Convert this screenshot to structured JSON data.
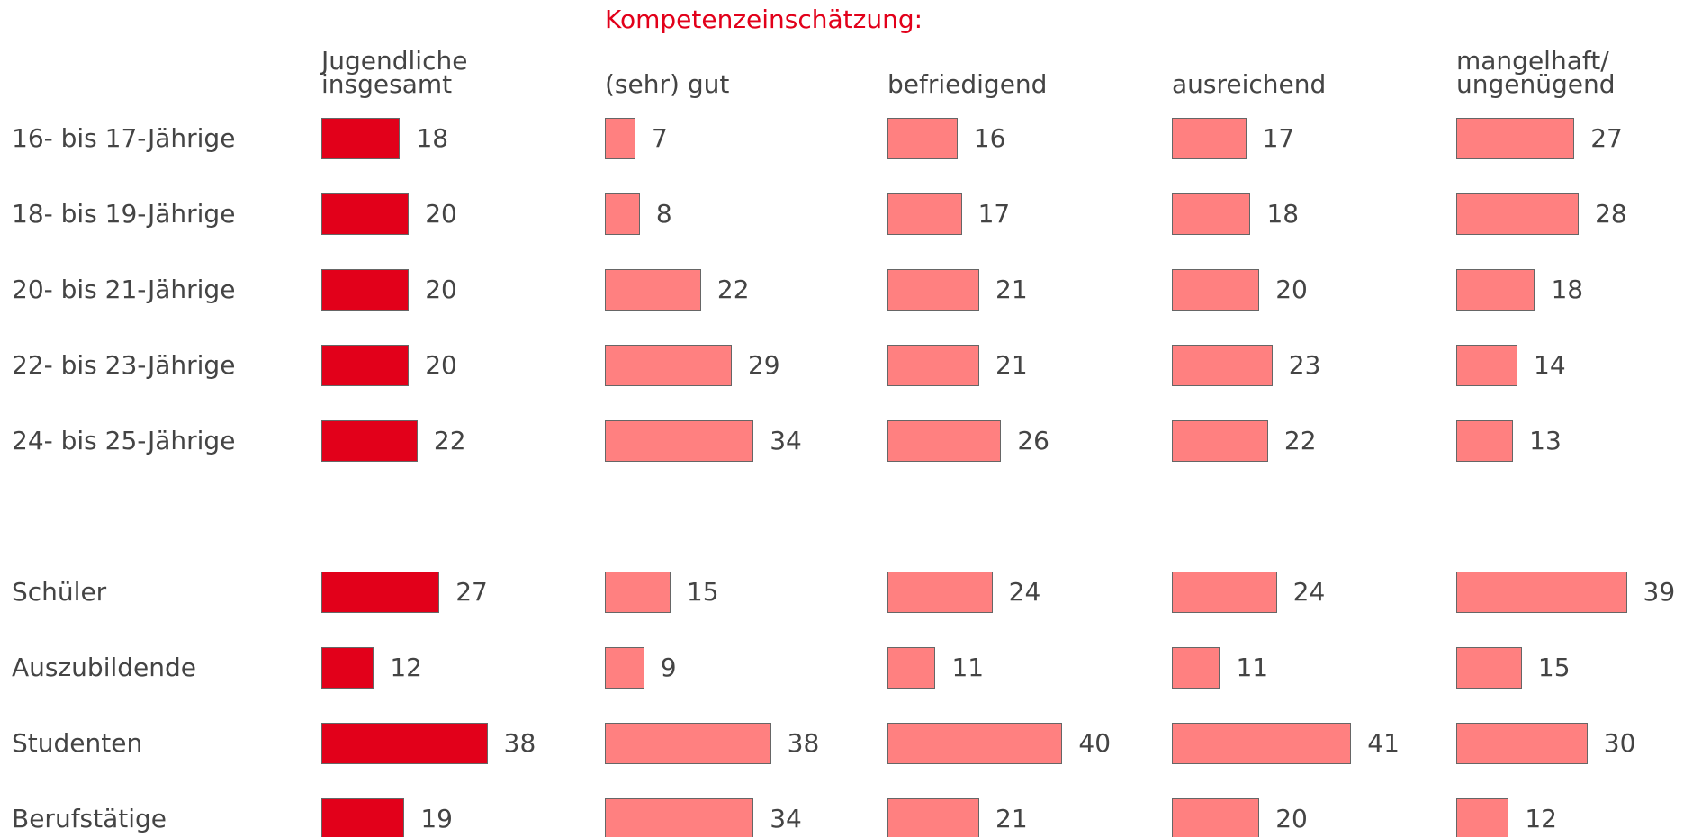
{
  "chart_data": {
    "type": "bar",
    "title": "Kompetenzeinschätzung:",
    "categories": [
      "16- bis 17-Jährige",
      "18- bis 19-Jährige",
      "20- bis 21-Jährige",
      "22- bis 23-Jährige",
      "24- bis 25-Jährige",
      "Schüler",
      "Auszubildende",
      "Studenten",
      "Berufstätige"
    ],
    "series": [
      {
        "name": "Jugendliche insgesamt",
        "color": "#e2001a",
        "values": [
          18,
          20,
          20,
          20,
          22,
          27,
          12,
          38,
          19
        ]
      },
      {
        "name": "(sehr) gut",
        "color": "#ff8080",
        "values": [
          7,
          8,
          22,
          29,
          34,
          15,
          9,
          38,
          34
        ]
      },
      {
        "name": "befriedigend",
        "color": "#ff8080",
        "values": [
          16,
          17,
          21,
          21,
          26,
          24,
          11,
          40,
          21
        ]
      },
      {
        "name": "ausreichend",
        "color": "#ff8080",
        "values": [
          17,
          18,
          20,
          23,
          22,
          24,
          11,
          41,
          20
        ]
      },
      {
        "name": "mangelhaft/ ungenügend",
        "color": "#ff8080",
        "values": [
          27,
          28,
          18,
          14,
          13,
          39,
          15,
          30,
          12
        ]
      }
    ]
  }
}
